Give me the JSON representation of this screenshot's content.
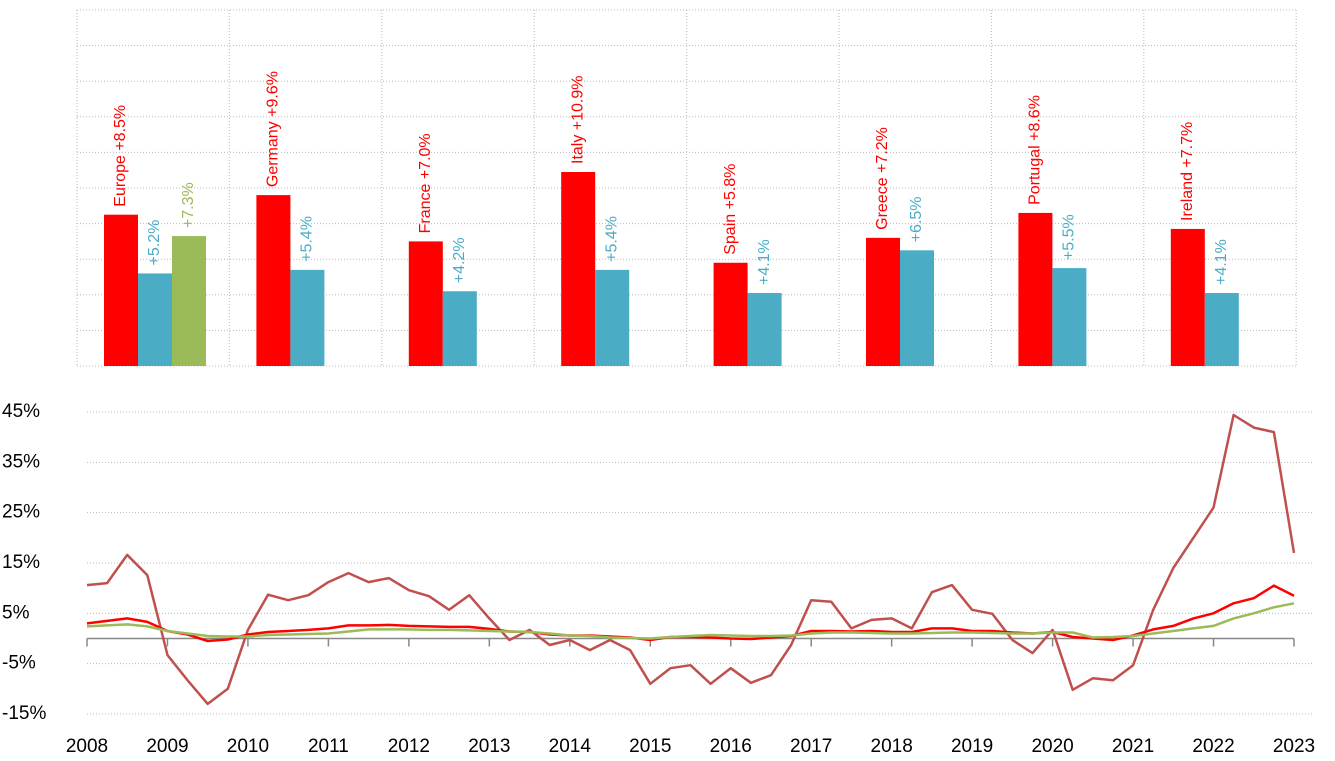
{
  "chart_data": [
    {
      "type": "bar",
      "series": [
        {
          "color": "#ff0000",
          "values": [
            8.5,
            9.6,
            7.0,
            10.9,
            5.8,
            7.2,
            8.6,
            7.7
          ],
          "value_labels": [
            "Europe +8.5%",
            "Germany +9.6%",
            "France +7.0%",
            "Italy +10.9%",
            "Spain +5.8%",
            "Greece +7.2%",
            "Portugal +8.6%",
            "Ireland +7.7%"
          ]
        },
        {
          "color": "#4bacc6",
          "values": [
            5.2,
            5.4,
            4.2,
            5.4,
            4.1,
            6.5,
            5.5,
            4.1
          ],
          "value_labels": [
            "+5.2%",
            "+5.4%",
            "+4.2%",
            "+5.4%",
            "+4.1%",
            "+6.5%",
            "+5.5%",
            "+4.1%"
          ]
        },
        {
          "color": "#9bbb59",
          "values": [
            7.3,
            null,
            null,
            null,
            null,
            null,
            null,
            null
          ],
          "value_labels": [
            "+7.3%",
            null,
            null,
            null,
            null,
            null,
            null,
            null
          ]
        }
      ],
      "ylim": [
        0,
        20
      ],
      "yticks": [
        0,
        2,
        4,
        6,
        8,
        10,
        12,
        14,
        16,
        18,
        20
      ],
      "grid": true,
      "tick_labels": false
    },
    {
      "type": "line",
      "x": [
        2008,
        2008.25,
        2008.5,
        2008.75,
        2009,
        2009.25,
        2009.5,
        2009.75,
        2010,
        2010.25,
        2010.5,
        2010.75,
        2011,
        2011.25,
        2011.5,
        2011.75,
        2012,
        2012.25,
        2012.5,
        2012.75,
        2013,
        2013.25,
        2013.5,
        2013.75,
        2014,
        2014.25,
        2014.5,
        2014.75,
        2015,
        2015.25,
        2015.5,
        2015.75,
        2016,
        2016.25,
        2016.5,
        2016.75,
        2017,
        2017.25,
        2017.5,
        2017.75,
        2018,
        2018.25,
        2018.5,
        2018.75,
        2019,
        2019.25,
        2019.5,
        2019.75,
        2020,
        2020.25,
        2020.5,
        2020.75,
        2021,
        2021.25,
        2021.5,
        2021.75,
        2022,
        2022.25,
        2022.5,
        2022.75,
        2023
      ],
      "series": [
        {
          "color": "#c0504d",
          "values": [
            10.6,
            11,
            16.6,
            12.6,
            -3.3,
            -8.3,
            -13,
            -10,
            1.7,
            8.7,
            7.6,
            8.6,
            11.2,
            13,
            11.2,
            12,
            9.6,
            8.4,
            5.7,
            8.6,
            4,
            -0.3,
            1.7,
            -1.3,
            -0.3,
            -2.3,
            -0.3,
            -2.3,
            -9,
            -5.9,
            -5.3,
            -9,
            -5.9,
            -8.8,
            -7.3,
            -1.3,
            7.6,
            7.3,
            2,
            3.7,
            4,
            2,
            9.2,
            10.6,
            5.7,
            4.9,
            -0.3,
            -2.9,
            1.7,
            -10.2,
            -7.9,
            -8.3,
            -5.3,
            5.7,
            14,
            20,
            26,
            44.4,
            41.9,
            41,
            17
          ]
        },
        {
          "color": "#ff0000",
          "values": [
            3.0,
            3.5,
            4.0,
            3.3,
            1.5,
            0.8,
            -0.5,
            -0.2,
            0.8,
            1.3,
            1.5,
            1.7,
            2.0,
            2.6,
            2.6,
            2.7,
            2.5,
            2.4,
            2.3,
            2.3,
            1.9,
            1.4,
            1.3,
            0.8,
            0.6,
            0.6,
            0.4,
            0.2,
            -0.3,
            0.3,
            0.3,
            0.2,
            0.0,
            -0.1,
            0.2,
            0.5,
            1.5,
            1.5,
            1.4,
            1.5,
            1.3,
            1.3,
            2.0,
            2.0,
            1.5,
            1.5,
            1.2,
            1.0,
            1.3,
            0.3,
            0.0,
            -0.3,
            0.6,
            1.8,
            2.5,
            4.0,
            5.0,
            7.0,
            8.0,
            10.5,
            8.5
          ]
        },
        {
          "color": "#9bbb59",
          "values": [
            2.4,
            2.6,
            2.8,
            2.4,
            1.5,
            1.0,
            0.5,
            0.4,
            0.4,
            0.7,
            0.8,
            0.9,
            1.0,
            1.4,
            1.8,
            1.8,
            1.8,
            1.7,
            1.7,
            1.6,
            1.5,
            1.4,
            1.3,
            1.0,
            0.6,
            0.5,
            0.2,
            0.1,
            0.0,
            0.3,
            0.5,
            0.7,
            0.6,
            0.5,
            0.5,
            0.6,
            1.0,
            1.2,
            1.2,
            1.1,
            1.0,
            1.0,
            1.1,
            1.2,
            1.2,
            1.1,
            1.0,
            1.0,
            1.2,
            1.2,
            0.2,
            0.3,
            0.5,
            1.0,
            1.5,
            2.0,
            2.5,
            4.0,
            5.0,
            6.2,
            7.0
          ]
        }
      ],
      "xlim": [
        2008,
        2023
      ],
      "xticks": [
        2008,
        2009,
        2010,
        2011,
        2012,
        2013,
        2014,
        2015,
        2016,
        2017,
        2018,
        2019,
        2020,
        2021,
        2022,
        2023
      ],
      "ylim": [
        -15,
        45
      ],
      "yticks": [
        {
          "value": -15,
          "label": "-15%"
        },
        {
          "value": -5,
          "label": "-5%"
        },
        {
          "value": 5,
          "label": "5%"
        },
        {
          "value": 15,
          "label": "15%"
        },
        {
          "value": 25,
          "label": "25%"
        },
        {
          "value": 35,
          "label": "35%"
        },
        {
          "value": 45,
          "label": "45%"
        }
      ],
      "grid": true
    }
  ]
}
